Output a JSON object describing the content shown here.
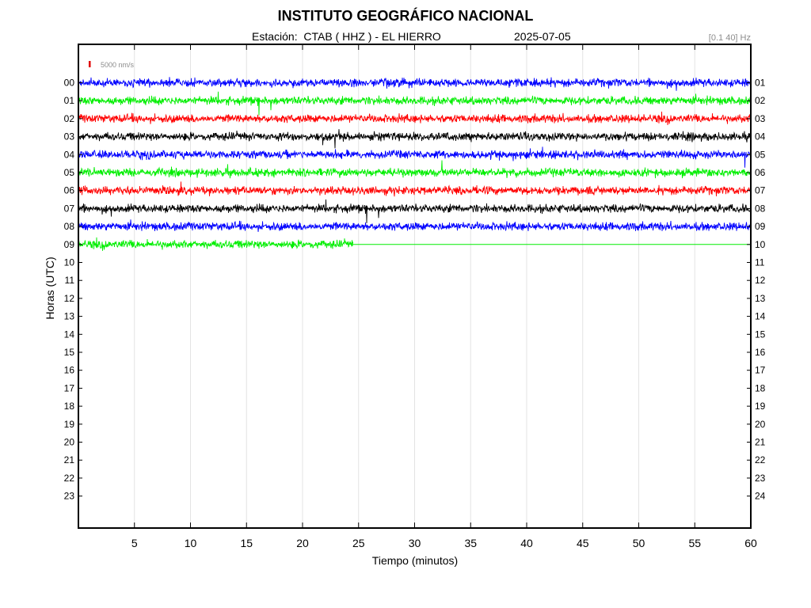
{
  "header": {
    "title": "INSTITUTO GEOGRÁFICO NACIONAL",
    "station": "Estación:  CTAB ( HHZ ) - EL HIERRO",
    "date": "2025-07-05",
    "filter": "[0.1 40] Hz"
  },
  "chart_data": {
    "type": "line",
    "xlabel": "Tiempo (minutos)",
    "ylabel": "Horas (UTC)",
    "xlim": [
      0,
      60
    ],
    "x_ticks": [
      5,
      10,
      15,
      20,
      25,
      30,
      35,
      40,
      45,
      50,
      55,
      60
    ],
    "left_hour_labels": [
      "00",
      "01",
      "02",
      "03",
      "04",
      "05",
      "06",
      "07",
      "08",
      "09",
      "10",
      "11",
      "12",
      "13",
      "14",
      "15",
      "16",
      "17",
      "18",
      "19",
      "20",
      "21",
      "22",
      "23"
    ],
    "right_hour_labels": [
      "01",
      "02",
      "03",
      "04",
      "05",
      "06",
      "07",
      "08",
      "09",
      "10",
      "11",
      "12",
      "13",
      "14",
      "15",
      "16",
      "17",
      "18",
      "19",
      "20",
      "21",
      "22",
      "23",
      "24"
    ],
    "scale_bar_label": "5000 nm/s",
    "scale_bar_color": "#e00000",
    "grid": "vertical",
    "trace_colors": [
      "#0000ff",
      "#00ee00",
      "#ff0000",
      "#000000"
    ],
    "traces": [
      {
        "hour": "00",
        "start_min": 0,
        "end_min": 60
      },
      {
        "hour": "01",
        "start_min": 0,
        "end_min": 60
      },
      {
        "hour": "02",
        "start_min": 0,
        "end_min": 60
      },
      {
        "hour": "03",
        "start_min": 0,
        "end_min": 60
      },
      {
        "hour": "04",
        "start_min": 0,
        "end_min": 60
      },
      {
        "hour": "05",
        "start_min": 0,
        "end_min": 60
      },
      {
        "hour": "06",
        "start_min": 0,
        "end_min": 60
      },
      {
        "hour": "07",
        "start_min": 0,
        "end_min": 60
      },
      {
        "hour": "08",
        "start_min": 0,
        "end_min": 60
      },
      {
        "hour": "09",
        "start_min": 0,
        "end_min": 24.5
      }
    ]
  }
}
